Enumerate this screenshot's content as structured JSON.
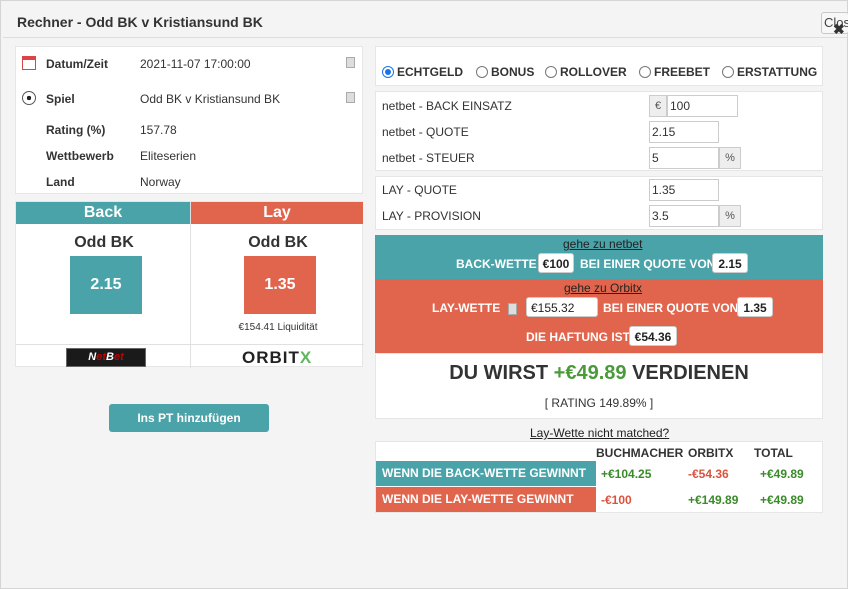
{
  "dialog": {
    "title": "Rechner - Odd BK v Kristiansund BK",
    "close_label": "Close",
    "close_icon": "✖"
  },
  "info": [
    {
      "icon": "calendar-icon",
      "label": "Datum/Zeit",
      "value": "2021-11-07 17:00:00"
    },
    {
      "icon": "soccer-ball-icon",
      "label": "Spiel",
      "value": "Odd BK v Kristiansund BK"
    },
    {
      "label": "Rating (%)",
      "value": "157.78"
    },
    {
      "label": "Wettbewerb",
      "value": "Eliteserien"
    },
    {
      "label": "Land",
      "value": "Norway"
    }
  ],
  "back": {
    "header": "Back",
    "team": "Odd BK",
    "odds": "2.15",
    "color": "#4aa3a8",
    "bookmaker": "NetBet"
  },
  "lay": {
    "header": "Lay",
    "team": "Odd BK",
    "odds": "1.35",
    "liquidity": "€154.41 Liquidität",
    "color": "#e1654d",
    "exchange": "ORBITX"
  },
  "pt_button": "Ins PT hinzufügen",
  "modes": [
    {
      "label": "ECHTGELD",
      "checked": true
    },
    {
      "label": "BONUS",
      "checked": false
    },
    {
      "label": "ROLLOVER",
      "checked": false
    },
    {
      "label": "FREEBET",
      "checked": false
    },
    {
      "label": "ERSTATTUNG",
      "checked": false
    }
  ],
  "back_fields": {
    "stake_label": "netbet - BACK EINSATZ",
    "stake_prefix": "€",
    "stake_value": "100",
    "odds_label": "netbet - QUOTE",
    "odds_value": "2.15",
    "tax_label": "netbet - STEUER",
    "tax_value": "5",
    "tax_suffix": "%"
  },
  "lay_fields": {
    "odds_label": "LAY - QUOTE",
    "odds_value": "1.35",
    "commission_label": "LAY - PROVISION",
    "commission_value": "3.5",
    "commission_suffix": "%"
  },
  "back_bet": {
    "link": "gehe zu netbet",
    "prefix": "BACK-WETTE",
    "amount": "€100",
    "middle": "BEI EINER QUOTE VON",
    "odds": "2.15"
  },
  "lay_bet": {
    "link": "gehe zu Orbitx",
    "prefix": "LAY-WETTE",
    "amount": "€155.32",
    "middle": "BEI EINER QUOTE VON",
    "odds": "1.35",
    "liability_label": "DIE HAFTUNG IST",
    "liability": "€54.36"
  },
  "result": {
    "prefix": "DU WIRST",
    "amount": "+€49.89",
    "suffix": "VERDIENEN",
    "rating": "[ RATING 149.89% ]"
  },
  "not_matched_link": "Lay-Wette nicht matched?",
  "outcomes": {
    "headers": [
      "BUCHMACHER",
      "ORBITX",
      "TOTAL"
    ],
    "rows": [
      {
        "label": "WENN DIE BACK-WETTE GEWINNT",
        "bookmaker": "+€104.25",
        "exchange": "-€54.36",
        "total": "+€49.89"
      },
      {
        "label": "WENN DIE LAY-WETTE GEWINNT",
        "bookmaker": "-€100",
        "exchange": "+€149.89",
        "total": "+€49.89"
      }
    ]
  }
}
